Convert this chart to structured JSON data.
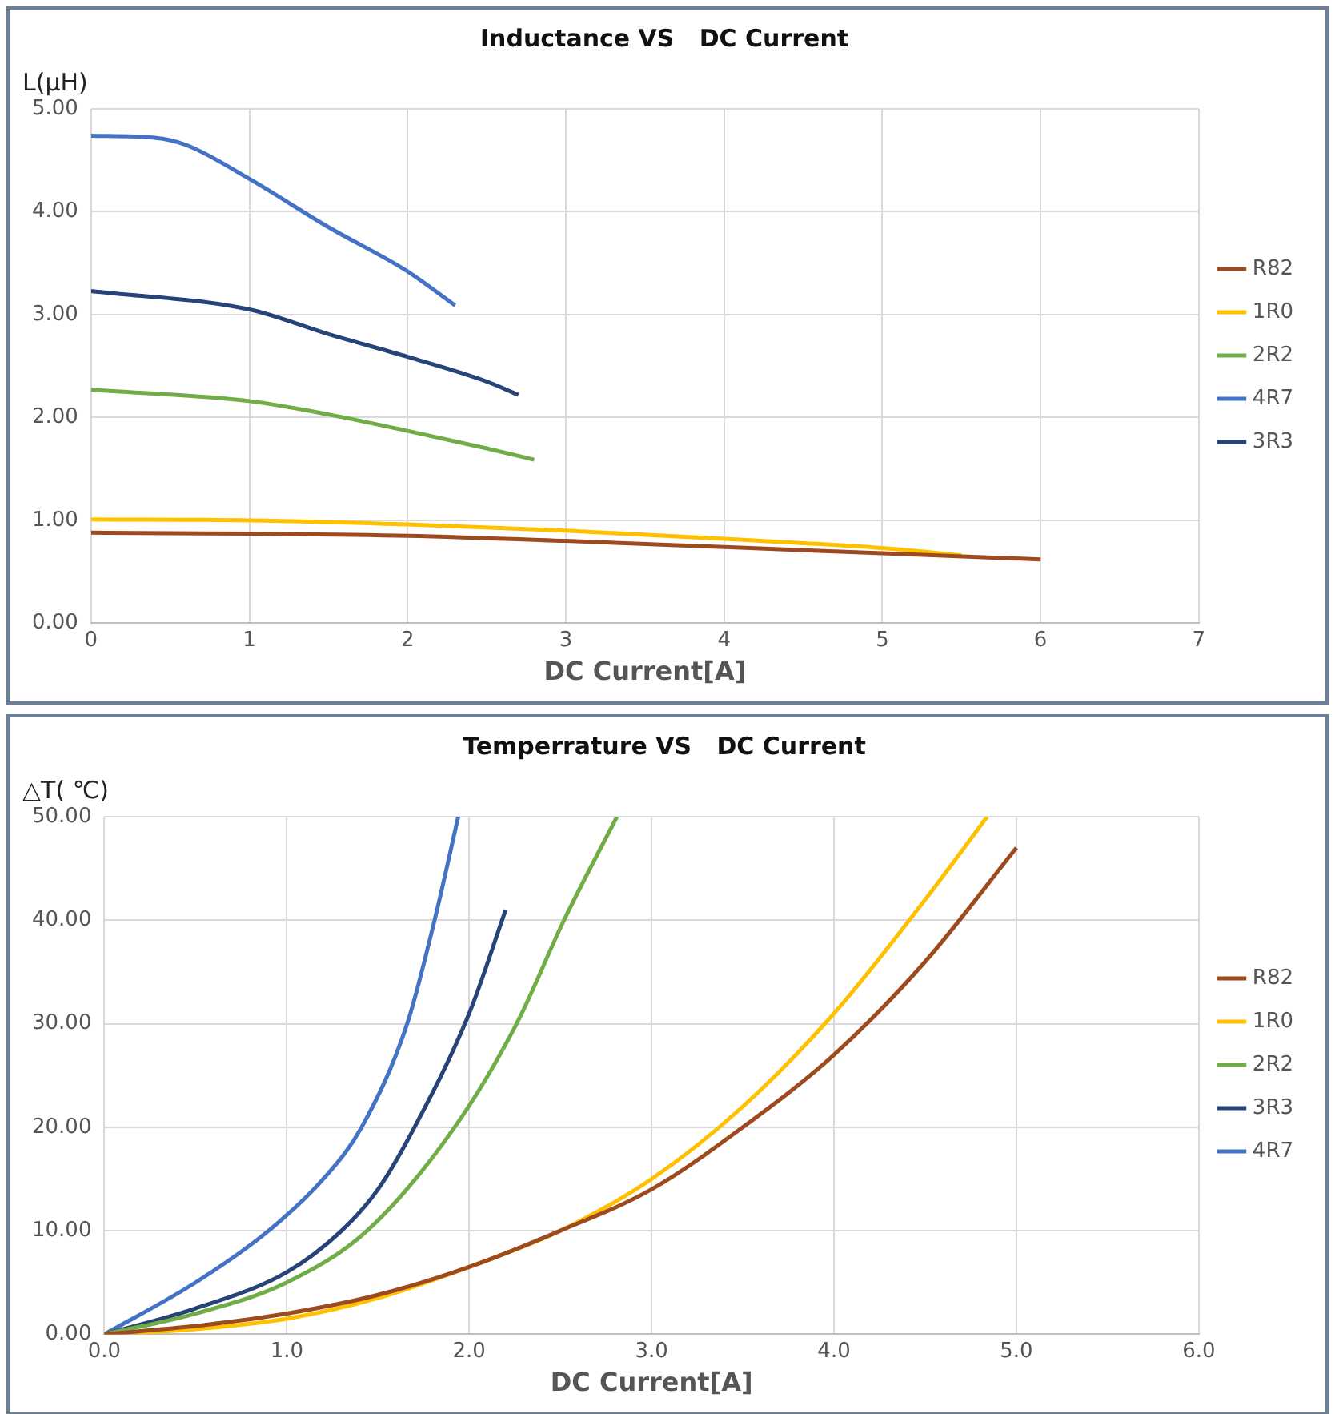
{
  "chart_data": [
    {
      "type": "line",
      "title": "Inductance VS   DC Current",
      "xlabel": "DC Current[A]",
      "ylabel": "L(μH)",
      "xlim": [
        0,
        7
      ],
      "xticks": [
        0,
        1,
        2,
        3,
        4,
        5,
        6,
        7
      ],
      "ylim": [
        0,
        5
      ],
      "yticks": [
        {
          "value": 0,
          "label": "0.00"
        },
        {
          "value": 1,
          "label": "1.00"
        },
        {
          "value": 2,
          "label": "2.00"
        },
        {
          "value": 3,
          "label": "3.00"
        },
        {
          "value": 4,
          "label": "4.00"
        },
        {
          "value": 5,
          "label": "5.00"
        }
      ],
      "grid": true,
      "legend": "right",
      "marker": "none",
      "line_style": "solid",
      "series": [
        {
          "name": "R82",
          "color": "#9e4a1f",
          "x": [
            0,
            1,
            2,
            3,
            4,
            5,
            6
          ],
          "values": [
            0.88,
            0.87,
            0.85,
            0.8,
            0.74,
            0.68,
            0.62
          ]
        },
        {
          "name": "1R0",
          "color": "#ffc000",
          "x": [
            0,
            1,
            2,
            3,
            4,
            5,
            5.5
          ],
          "values": [
            1.01,
            1.0,
            0.96,
            0.9,
            0.82,
            0.73,
            0.66
          ]
        },
        {
          "name": "2R2",
          "color": "#70ad47",
          "x": [
            0,
            1,
            1.5,
            2,
            2.5,
            2.8
          ],
          "values": [
            2.27,
            2.16,
            2.03,
            1.87,
            1.7,
            1.59
          ]
        },
        {
          "name": "4R7",
          "color": "#4472c4",
          "x": [
            0,
            0.4,
            0.6,
            1,
            1.5,
            2,
            2.3
          ],
          "values": [
            4.74,
            4.72,
            4.65,
            4.32,
            3.85,
            3.42,
            3.09
          ]
        },
        {
          "name": "3R3",
          "color": "#264478",
          "x": [
            0,
            1,
            1.5,
            2,
            2.5,
            2.7
          ],
          "values": [
            3.23,
            3.05,
            2.81,
            2.59,
            2.35,
            2.22
          ]
        }
      ]
    },
    {
      "type": "line",
      "title": "Temperrature VS   DC Current",
      "xlabel": "DC Current[A]",
      "ylabel": "△T( ℃)",
      "xlim": [
        0,
        6
      ],
      "xticks": [
        {
          "value": 0,
          "label": "0.0"
        },
        {
          "value": 1,
          "label": "1.0"
        },
        {
          "value": 2,
          "label": "2.0"
        },
        {
          "value": 3,
          "label": "3.0"
        },
        {
          "value": 4,
          "label": "4.0"
        },
        {
          "value": 5,
          "label": "5.0"
        },
        {
          "value": 6,
          "label": "6.0"
        }
      ],
      "ylim": [
        0,
        50
      ],
      "yticks": [
        {
          "value": 0,
          "label": "0.00"
        },
        {
          "value": 10,
          "label": "10.00"
        },
        {
          "value": 20,
          "label": "20.00"
        },
        {
          "value": 30,
          "label": "30.00"
        },
        {
          "value": 40,
          "label": "40.00"
        },
        {
          "value": 50,
          "label": "50.00"
        }
      ],
      "grid": true,
      "legend": "right",
      "marker": "none",
      "line_style": "solid",
      "series": [
        {
          "name": "R82",
          "color": "#9e4a1f",
          "x": [
            0,
            0.5,
            1,
            1.5,
            2,
            2.5,
            3,
            3.5,
            4,
            4.5,
            5
          ],
          "values": [
            0,
            0.8,
            2,
            3.8,
            6.5,
            10,
            14,
            20,
            27,
            36,
            47
          ]
        },
        {
          "name": "1R0",
          "color": "#ffc000",
          "x": [
            0,
            0.5,
            1,
            1.5,
            2,
            2.5,
            3,
            3.5,
            4,
            4.5,
            4.84
          ],
          "values": [
            0,
            0.5,
            1.5,
            3.5,
            6.5,
            10,
            15,
            22,
            31,
            42,
            50
          ]
        },
        {
          "name": "2R2",
          "color": "#70ad47",
          "x": [
            0,
            0.5,
            1,
            1.44,
            1.92,
            2.26,
            2.52,
            2.81
          ],
          "values": [
            0,
            2,
            5,
            10,
            20,
            30,
            40,
            50
          ]
        },
        {
          "name": "3R3",
          "color": "#264478",
          "x": [
            0,
            0.5,
            1,
            1.3,
            1.5,
            1.7,
            2,
            2.2
          ],
          "values": [
            0,
            2.5,
            6,
            10,
            14,
            20,
            31,
            41
          ]
        },
        {
          "name": "4R7",
          "color": "#4472c4",
          "x": [
            0,
            0.5,
            0.9,
            1.2,
            1.41,
            1.66,
            1.81,
            1.94
          ],
          "values": [
            0,
            5,
            10,
            15,
            20,
            30,
            40,
            50
          ]
        }
      ]
    }
  ]
}
